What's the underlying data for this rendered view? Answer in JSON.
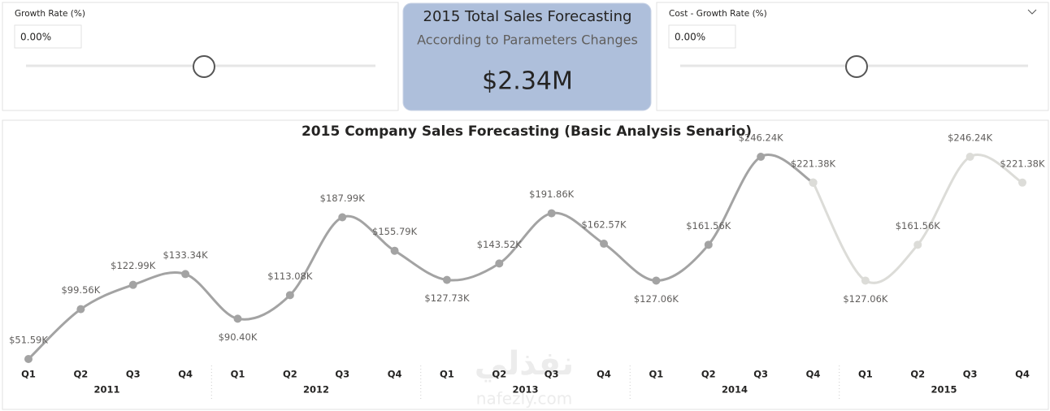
{
  "slicers": [
    {
      "title": "Growth Rate (%)",
      "input": "0.00%"
    },
    {
      "title": "Cost - Growth Rate (%)",
      "input": "0.00%"
    }
  ],
  "card": {
    "title": "2015 Total Sales Forecasting",
    "subtitle": "According to Parameters Changes",
    "value": "$2.34M"
  },
  "watermark": [
    "نفذلي",
    "nafezly.com"
  ],
  "chart_data": {
    "type": "line",
    "title": "2015 Company Sales Forecasting (Basic Analysis Senario)",
    "categories": [
      "Q1",
      "Q2",
      "Q3",
      "Q4",
      "Q1",
      "Q2",
      "Q3",
      "Q4",
      "Q1",
      "Q2",
      "Q3",
      "Q4",
      "Q1",
      "Q2",
      "Q3",
      "Q4",
      "Q1",
      "Q2",
      "Q3",
      "Q4"
    ],
    "x_groups": [
      "2011",
      "2012",
      "2013",
      "2014",
      "2015"
    ],
    "series": [
      {
        "color": "#a3a3a3",
        "values": [
          51.59,
          99.56,
          122.99,
          133.34,
          90.4,
          113.08,
          187.99,
          155.79,
          127.73,
          143.52,
          191.86,
          162.57,
          127.06,
          161.56,
          246.24,
          221.38,
          null,
          null,
          null,
          null
        ],
        "value_labels": [
          "$51.59K",
          "$99.56K",
          "$122.99K",
          "$133.34K",
          "$90.40K",
          "$113.08K",
          "$187.99K",
          "$155.79K",
          "$127.73K",
          "$143.52K",
          "$191.86K",
          "$162.57K",
          "$127.06K",
          "$161.56K",
          "$246.24K",
          "$221.38K",
          null,
          null,
          null,
          null
        ]
      },
      {
        "color": "#dcdcd8",
        "values": [
          null,
          null,
          null,
          null,
          null,
          null,
          null,
          null,
          null,
          null,
          null,
          null,
          null,
          null,
          null,
          221.38,
          127.06,
          161.56,
          246.24,
          221.38
        ],
        "value_labels": [
          null,
          null,
          null,
          null,
          null,
          null,
          null,
          null,
          null,
          null,
          null,
          null,
          null,
          null,
          null,
          null,
          "$127.06K",
          "$161.56K",
          "$246.24K",
          "$221.38K"
        ]
      }
    ]
  }
}
